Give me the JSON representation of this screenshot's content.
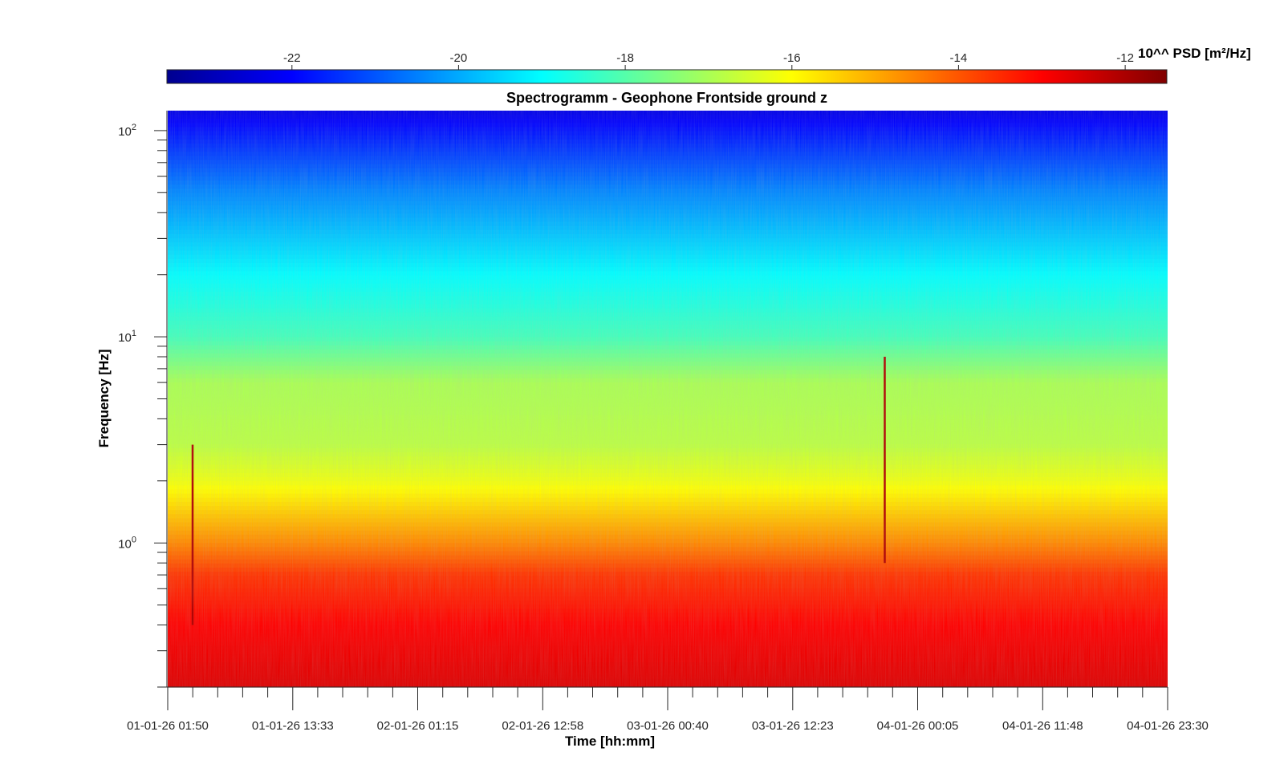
{
  "chart_data": {
    "type": "heatmap",
    "title": "Spectrogramm - Geophone Frontside ground z",
    "xlabel": "Time [hh:mm]",
    "ylabel": "Frequency [Hz]",
    "y_scale": "log",
    "ylim": [
      0.2,
      125
    ],
    "y_ticks": [
      {
        "value": 1,
        "base": "10",
        "exp": "0"
      },
      {
        "value": 10,
        "base": "10",
        "exp": "1"
      },
      {
        "value": 100,
        "base": "10",
        "exp": "2"
      }
    ],
    "x_ticks": [
      "01-01-26 01:50",
      "01-01-26 13:33",
      "02-01-26 01:15",
      "02-01-26 12:58",
      "03-01-26 00:40",
      "03-01-26 12:23",
      "04-01-26 00:05",
      "04-01-26 11:48",
      "04-01-26 23:30"
    ],
    "colorbar": {
      "label": "10^^ PSD [m²/Hz]",
      "clim": [
        -23.5,
        -11.5
      ],
      "ticks": [
        "-22",
        "-20",
        "-18",
        "-16",
        "-14",
        "-12"
      ],
      "tick_values": [
        -22,
        -20,
        -18,
        -16,
        -14,
        -12
      ],
      "colormap": "jet"
    },
    "psd_profile": [
      {
        "freq": 0.2,
        "log10_psd": -12.6
      },
      {
        "freq": 0.4,
        "log10_psd": -13.0
      },
      {
        "freq": 0.7,
        "log10_psd": -13.6
      },
      {
        "freq": 1.0,
        "log10_psd": -14.6
      },
      {
        "freq": 2.0,
        "log10_psd": -16.2
      },
      {
        "freq": 3.0,
        "log10_psd": -16.8
      },
      {
        "freq": 6.0,
        "log10_psd": -17.0
      },
      {
        "freq": 10.0,
        "log10_psd": -18.2
      },
      {
        "freq": 20.0,
        "log10_psd": -19.0
      },
      {
        "freq": 50.0,
        "log10_psd": -20.4
      },
      {
        "freq": 100.0,
        "log10_psd": -21.8
      },
      {
        "freq": 125.0,
        "log10_psd": -22.3
      }
    ],
    "events": [
      {
        "time": "01-01-26 04:10",
        "freq_min": 0.4,
        "freq_max": 3.0
      },
      {
        "time": "03-01-26 21:00",
        "freq_min": 0.8,
        "freq_max": 8.0
      }
    ]
  }
}
